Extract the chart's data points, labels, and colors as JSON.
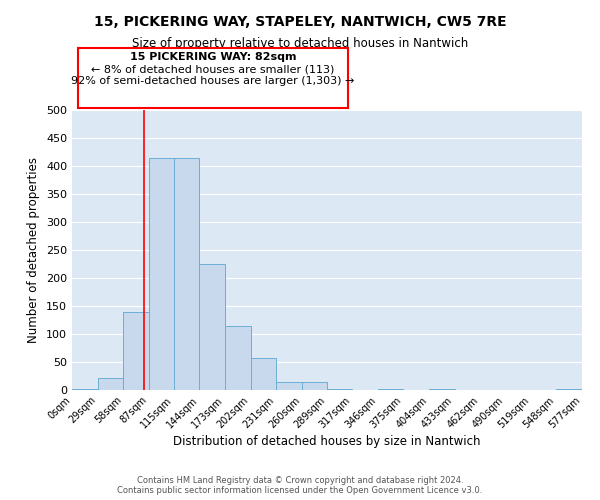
{
  "title": "15, PICKERING WAY, STAPELEY, NANTWICH, CW5 7RE",
  "subtitle": "Size of property relative to detached houses in Nantwich",
  "xlabel": "Distribution of detached houses by size in Nantwich",
  "ylabel": "Number of detached properties",
  "bar_color": "#c8d9ed",
  "bar_edgecolor": "#6baed6",
  "background_color": "#dce9f5",
  "grid_color": "#ffffff",
  "vline_x": 82,
  "vline_color": "red",
  "bin_edges": [
    0,
    29,
    58,
    87,
    115,
    144,
    173,
    202,
    231,
    260,
    289,
    317,
    346,
    375,
    404,
    433,
    462,
    490,
    519,
    548,
    577
  ],
  "bar_heights": [
    2,
    22,
    140,
    415,
    415,
    225,
    115,
    57,
    15,
    15,
    2,
    0,
    2,
    0,
    2,
    0,
    0,
    0,
    0,
    2
  ],
  "ylim": [
    0,
    500
  ],
  "yticks": [
    0,
    50,
    100,
    150,
    200,
    250,
    300,
    350,
    400,
    450,
    500
  ],
  "annotation_title": "15 PICKERING WAY: 82sqm",
  "annotation_line1": "← 8% of detached houses are smaller (113)",
  "annotation_line2": "92% of semi-detached houses are larger (1,303) →",
  "annotation_box_color": "white",
  "annotation_box_edgecolor": "red",
  "footer_line1": "Contains HM Land Registry data © Crown copyright and database right 2024.",
  "footer_line2": "Contains public sector information licensed under the Open Government Licence v3.0."
}
